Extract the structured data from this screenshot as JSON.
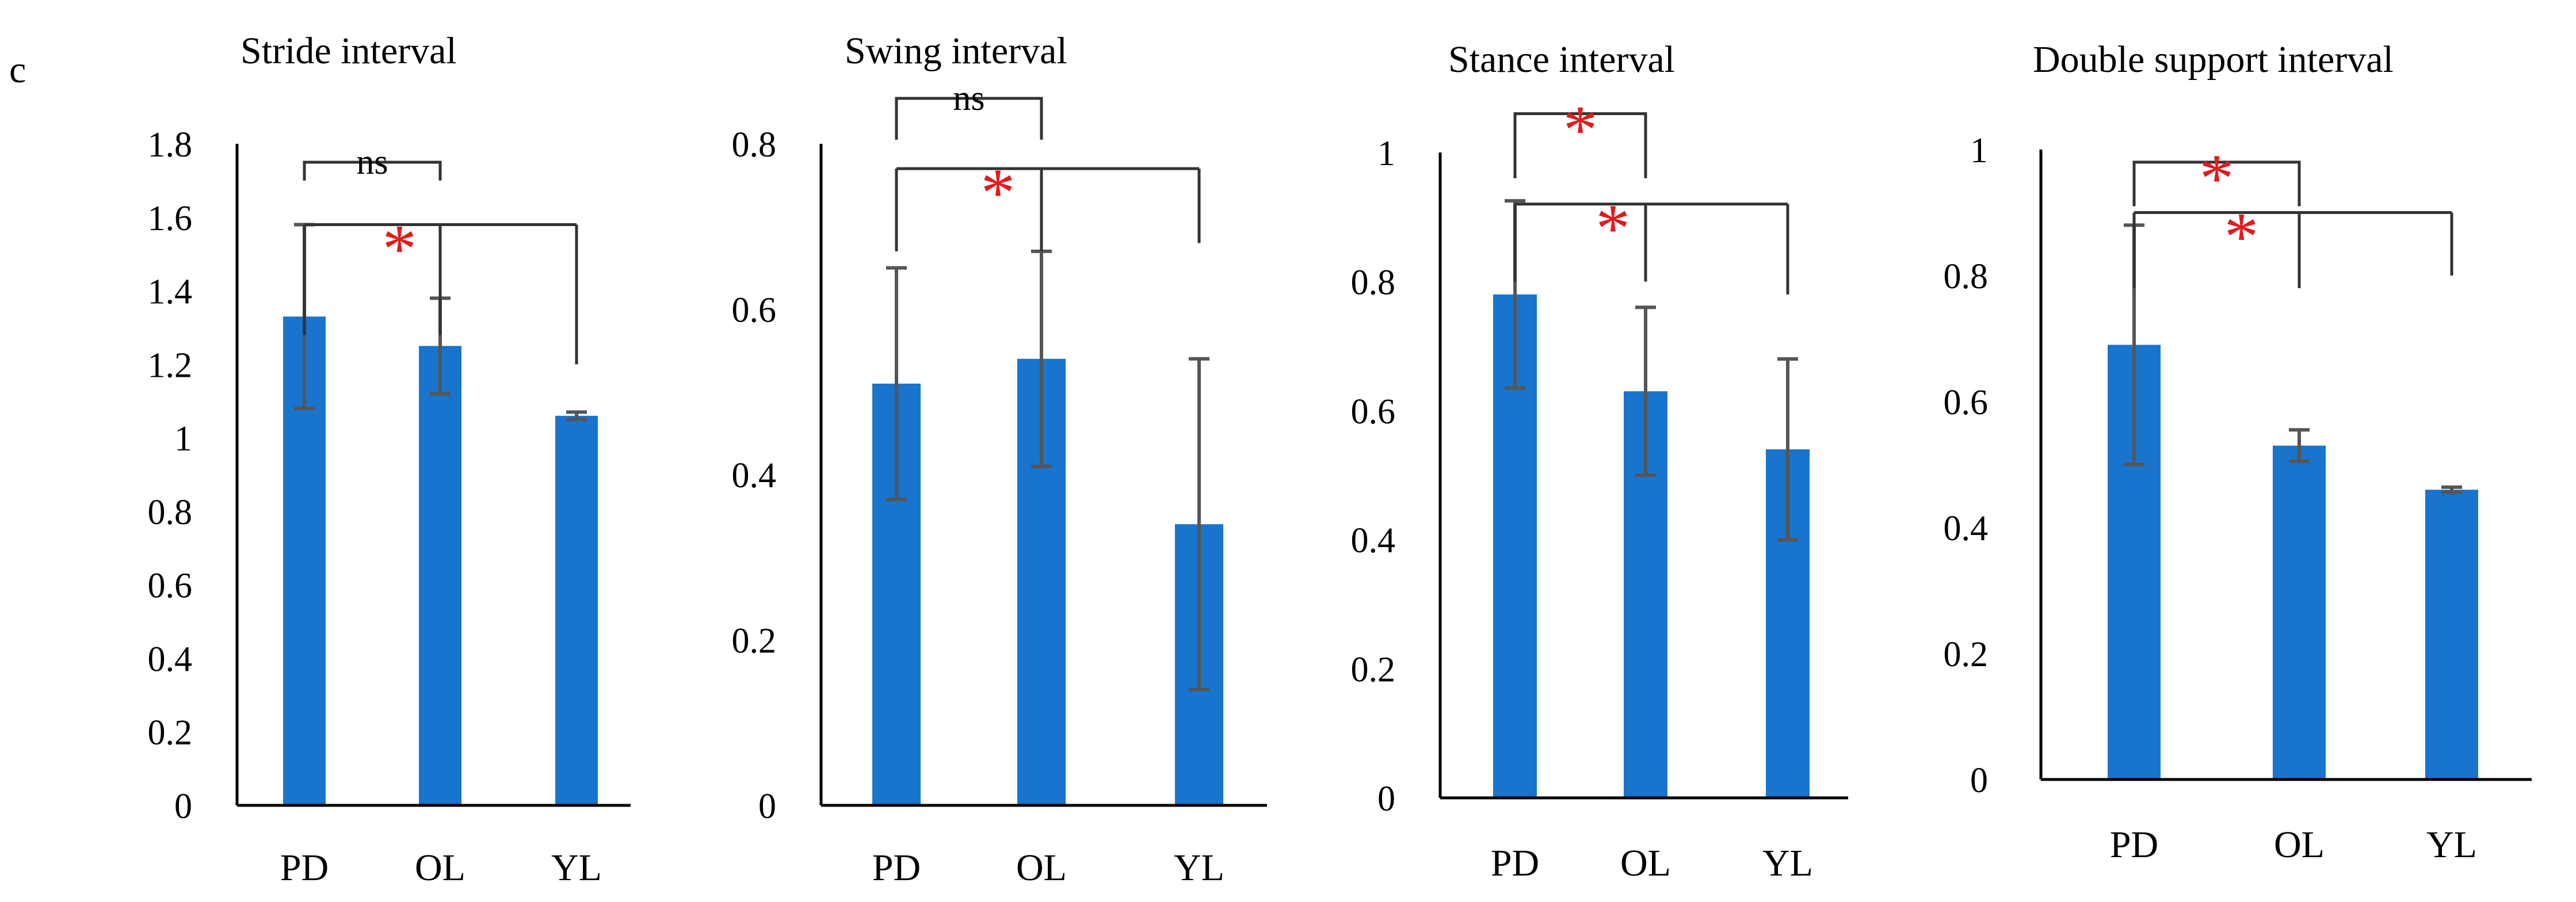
{
  "panel_label": "c",
  "colors": {
    "bar": "#1874CD",
    "error_bar": "#555555",
    "bracket": "#333333",
    "significant": "#E31A1C",
    "text": "#000000"
  },
  "chart_data": [
    {
      "type": "bar",
      "title": "Stride interval",
      "categories": [
        "PD",
        "OL",
        "YL"
      ],
      "values": [
        1.33,
        1.25,
        1.06
      ],
      "errors": [
        0.25,
        0.13,
        0.01
      ],
      "ylim": [
        0,
        1.8
      ],
      "yticks": [
        0,
        0.2,
        0.4,
        0.6,
        0.8,
        1,
        1.2,
        1.4,
        1.6,
        1.8
      ],
      "ytick_labels": [
        "0",
        "0.2",
        "0.4",
        "0.6",
        "0.8",
        "1",
        "1.2",
        "1.4",
        "1.6",
        "1.8"
      ],
      "xlabel": "",
      "ylabel": "",
      "annotations": [
        {
          "from": "PD",
          "to": "OL",
          "label": "ns",
          "level": 1.75,
          "drop": 0.05
        },
        {
          "from": "PD",
          "to": [
            "OL",
            "YL"
          ],
          "label": "*",
          "level": 1.58,
          "drops": [
            0.3,
            0.3,
            0.38
          ],
          "label_x": 0.7
        }
      ]
    },
    {
      "type": "bar",
      "title": "Swing interval",
      "categories": [
        "PD",
        "OL",
        "YL"
      ],
      "values": [
        0.51,
        0.54,
        0.34
      ],
      "errors": [
        0.14,
        0.13,
        0.2
      ],
      "ylim": [
        0,
        0.8
      ],
      "yticks": [
        0,
        0.2,
        0.4,
        0.6,
        0.8
      ],
      "ytick_labels": [
        "0",
        "0.2",
        "0.4",
        "0.6",
        "0.8"
      ],
      "xlabel": "",
      "ylabel": "",
      "annotations": [
        {
          "from": "PD",
          "to": "OL",
          "label": "ns",
          "level": 0.855,
          "drop": 0.05
        },
        {
          "from": "PD",
          "to": [
            "OL",
            "YL"
          ],
          "label": "*",
          "level": 0.77,
          "drops": [
            0.1,
            0.1,
            0.09
          ],
          "label_x": 0.7
        }
      ]
    },
    {
      "type": "bar",
      "title": "Stance interval",
      "categories": [
        "PD",
        "OL",
        "YL"
      ],
      "values": [
        0.78,
        0.63,
        0.54
      ],
      "errors": [
        0.145,
        0.13,
        0.14
      ],
      "ylim": [
        0,
        1
      ],
      "yticks": [
        0,
        0.2,
        0.4,
        0.6,
        0.8,
        1
      ],
      "ytick_labels": [
        "0",
        "0.2",
        "0.4",
        "0.6",
        "0.8",
        "1"
      ],
      "xlabel": "",
      "ylabel": "",
      "annotations": [
        {
          "from": "PD",
          "to": "OL",
          "label": "*",
          "level": 1.06,
          "drop": 0.1
        },
        {
          "from": "PD",
          "to": [
            "OL",
            "YL"
          ],
          "label": "*",
          "level": 0.92,
          "drops": [
            0.12,
            0.12,
            0.14
          ],
          "label_x": 0.75
        }
      ]
    },
    {
      "type": "bar",
      "title": "Double support interval",
      "categories": [
        "PD",
        "OL",
        "YL"
      ],
      "values": [
        0.69,
        0.53,
        0.46
      ],
      "errors": [
        0.19,
        0.025,
        0.004
      ],
      "ylim": [
        0,
        1
      ],
      "yticks": [
        0,
        0.2,
        0.4,
        0.6,
        0.8,
        1
      ],
      "ytick_labels": [
        "0",
        "0.2",
        "0.4",
        "0.6",
        "0.8",
        "1"
      ],
      "xlabel": "",
      "ylabel": "",
      "annotations": [
        {
          "from": "PD",
          "to": "OL",
          "label": "*",
          "level": 0.98,
          "drop": 0.07
        },
        {
          "from": "PD",
          "to": [
            "OL",
            "YL"
          ],
          "label": "*",
          "level": 0.9,
          "drops": [
            0.12,
            0.12,
            0.1
          ],
          "label_x": 0.65
        }
      ]
    }
  ]
}
